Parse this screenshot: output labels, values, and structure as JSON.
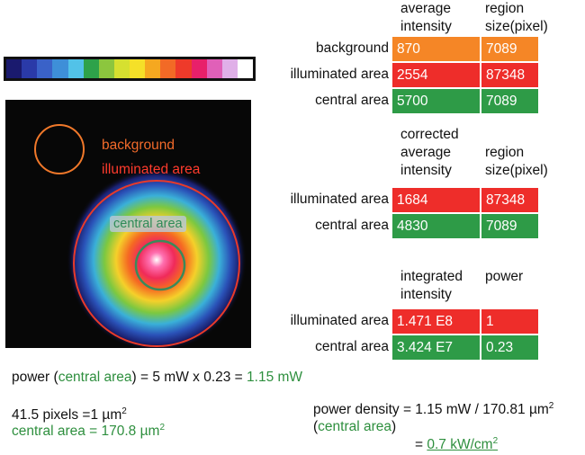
{
  "colorbar": {
    "colors": [
      "#1a1a6e",
      "#2a3aa8",
      "#3a62c8",
      "#3e8fd8",
      "#52c2e8",
      "#2ea24a",
      "#8cc63e",
      "#d6e030",
      "#f5e028",
      "#f5a820",
      "#f26a26",
      "#ee3a2a",
      "#e8206a",
      "#e060b8",
      "#e0b0e8",
      "#ffffff"
    ]
  },
  "image": {
    "label_background": "background",
    "label_illuminated": "illuminated area",
    "label_central": "central area"
  },
  "table1": {
    "header_col1": [
      "average",
      "intensity"
    ],
    "header_col2": [
      "region",
      "size(pixel)"
    ],
    "rows": [
      {
        "label": "background",
        "v1": "870",
        "v2": "7089"
      },
      {
        "label": "illuminated area",
        "v1": "2554",
        "v2": "87348"
      },
      {
        "label": "central area",
        "v1": "5700",
        "v2": "7089"
      }
    ]
  },
  "table2": {
    "header_col1": [
      "corrected",
      "average",
      "intensity"
    ],
    "header_col2": [
      "region",
      "size(pixel)"
    ],
    "rows": [
      {
        "label": "illuminated area",
        "v1": "1684",
        "v2": "87348"
      },
      {
        "label": "central area",
        "v1": "4830",
        "v2": "7089"
      }
    ]
  },
  "table3": {
    "header_col1": [
      "integrated",
      "intensity"
    ],
    "header_col2": "power",
    "rows": [
      {
        "label": "illuminated area",
        "v1": "1.471 E8",
        "v2": "1"
      },
      {
        "label": "central area",
        "v1": "3.424 E7",
        "v2": "0.23"
      }
    ]
  },
  "power_line": {
    "prefix": "power (",
    "central": "central area",
    "mid": ") = 5 mW x 0.23 = ",
    "result": "1.15 mW"
  },
  "pixels_line": {
    "text": "41.5 pixels =1 µm",
    "sup": "2"
  },
  "central_area_line": {
    "label": "central area = 170.8 µm",
    "sup": "2"
  },
  "density": {
    "line1": "power density = 1.15 mW / 170.81 µm",
    "line1_sup": "2",
    "line2_open": "(",
    "line2_central": "central area",
    "line2_close": ")",
    "line3_eq": "= ",
    "line3_value": "0.7 kW/cm",
    "line3_sup": "2"
  }
}
